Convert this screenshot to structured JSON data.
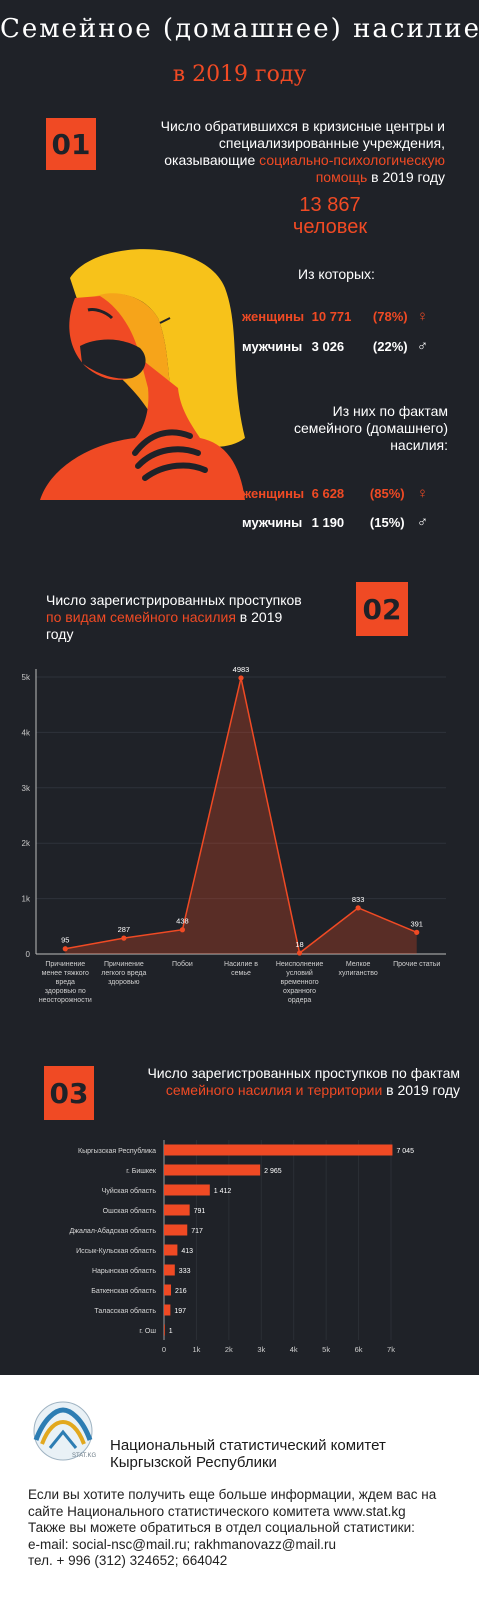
{
  "header": {
    "title": "Семейное (домашнее) насилие",
    "subtitle": "в 2019 году"
  },
  "section1": {
    "number": "01",
    "text_1": "Число обратившихся в кризисные центры и специализированные учреждения, оказывающие ",
    "text_highlight": "социально-психологическую помощь",
    "text_2": " в 2019 году",
    "total_value": "13 867",
    "total_unit": "человек",
    "of_which": "Из которых:",
    "women_label": "женщины",
    "women_value": "10 771",
    "women_pct": "(78%)",
    "men_label": "мужчины",
    "men_value": "3 026",
    "men_pct": "(22%)",
    "subheading": "Из них по фактам семейного (домашнего) насилия:",
    "dv_women_label": "женщины",
    "dv_women_value": "6 628",
    "dv_women_pct": "(85%)",
    "dv_men_label": "мужчины",
    "dv_men_value": "1 190",
    "dv_men_pct": "(15%)",
    "female_symbol": "♀",
    "male_symbol": "♂"
  },
  "section2": {
    "number": "02",
    "text_1": "Число зарегистрированных проступков ",
    "text_highlight": "по видам семейного насилия",
    "text_2": " в 2019 году"
  },
  "section3": {
    "number": "03",
    "text_1": "Число зарегистрованных проступков по фактам ",
    "text_highlight": "семейного насилия и территории",
    "text_2": " в 2019 году"
  },
  "footer": {
    "logo_text": "STAT.KG",
    "org_line1": "Национальный статистический комитет",
    "org_line2": "Кыргызской Республики",
    "contact_1": "Если вы хотите получить еще больше информации, ждем вас на сайте Национального статистического комитета www.stat.kg",
    "contact_2": "Также вы можете обратиться в отдел социальной статистики:",
    "contact_3": "e-mail: social-nsc@mail.ru; rakhmanovazz@mail.ru",
    "contact_4": "тел. + 996 (312) 324652; 664042"
  },
  "colors": {
    "accent": "#f04a24",
    "background": "#1f2228",
    "hair": "#f7c21a"
  },
  "chart_data": [
    {
      "type": "area",
      "categories": [
        [
          "Причинение",
          "менее тяжкого",
          "вреда",
          "здоровью по",
          "неосторожности"
        ],
        [
          "Причинение",
          "легкого вреда",
          "здоровью"
        ],
        [
          "Побои"
        ],
        [
          "Насилие в",
          "семье"
        ],
        [
          "Неисполнение",
          "условий",
          "временного",
          "охранного",
          "ордера"
        ],
        [
          "Мелкое",
          "хулиганство"
        ],
        [
          "Прочие статьи"
        ]
      ],
      "values": [
        95,
        287,
        438,
        4983,
        18,
        833,
        391
      ],
      "data_labels": [
        "95",
        "287",
        "438",
        "4983",
        "18",
        "833",
        "391"
      ],
      "yticks": [
        0,
        1000,
        2000,
        3000,
        4000,
        5000
      ],
      "ytick_labels": [
        "0",
        "1k",
        "2k",
        "3k",
        "4k",
        "5k"
      ],
      "ylim": [
        0,
        5000
      ]
    },
    {
      "type": "bar",
      "orientation": "horizontal",
      "categories": [
        "Кыргызская Республика",
        "г. Бишкек",
        "Чуйская область",
        "Ошская область",
        "Джалал-Абадская область",
        "Иссык-Кульская область",
        "Нарынская область",
        "Баткенская область",
        "Таласская область",
        "г. Ош"
      ],
      "values": [
        7045,
        2965,
        1412,
        791,
        717,
        413,
        333,
        216,
        197,
        1
      ],
      "data_labels": [
        "7 045",
        "2 965",
        "1 412",
        "791",
        "717",
        "413",
        "333",
        "216",
        "197",
        "1"
      ],
      "xticks": [
        0,
        1000,
        2000,
        3000,
        4000,
        5000,
        6000,
        7000
      ],
      "xtick_labels": [
        "0",
        "1k",
        "2k",
        "3k",
        "4k",
        "5k",
        "6k",
        "7k"
      ],
      "xlim": [
        0,
        7000
      ]
    }
  ]
}
